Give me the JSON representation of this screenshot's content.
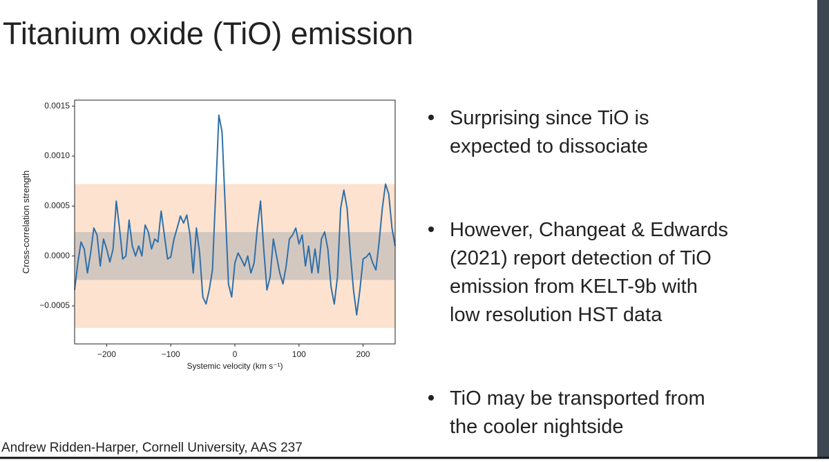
{
  "slide": {
    "title": "Titanium oxide (TiO) emission",
    "bullets": [
      [
        "Surprising since TiO is",
        "expected to dissociate"
      ],
      [
        "However, Changeat & Edwards",
        "(2021) report detection of TiO",
        "emission from KELT-9b with",
        "low resolution HST data"
      ],
      [
        "TiO may be transported from",
        "the cooler nightside"
      ]
    ],
    "footer": "Andrew Ridden-Harper, Cornell University, AAS 237"
  },
  "chart_data": {
    "type": "line",
    "xlabel": "Systemic velocity (km s⁻¹)",
    "ylabel": "Cross-correlation strength",
    "xlim": [
      -250,
      250
    ],
    "ylim": [
      -0.00088,
      0.00156
    ],
    "xticks": [
      {
        "value": -200,
        "label": "−200"
      },
      {
        "value": -100,
        "label": "−100"
      },
      0,
      100,
      200
    ],
    "yticks": [
      {
        "value": -0.0005,
        "label": "−0.0005"
      },
      {
        "value": 0,
        "label": "0.0000"
      },
      0.0005,
      {
        "value": 0.001,
        "label": "0.0010"
      },
      0.0015
    ],
    "bands": [
      {
        "color": "#fde3cf",
        "lower": -0.00072,
        "upper": 0.00072
      },
      {
        "color": "#cbc3bd",
        "lower": -0.00024,
        "upper": 0.00024
      }
    ],
    "x": [
      -250,
      -245,
      -240,
      -235,
      -230,
      -225,
      -220,
      -215,
      -210,
      -205,
      -200,
      -195,
      -190,
      -185,
      -180,
      -175,
      -170,
      -165,
      -160,
      -155,
      -150,
      -145,
      -140,
      -135,
      -130,
      -125,
      -120,
      -115,
      -110,
      -105,
      -100,
      -95,
      -90,
      -85,
      -80,
      -75,
      -70,
      -65,
      -60,
      -55,
      -50,
      -45,
      -40,
      -35,
      -30,
      -25,
      -20,
      -15,
      -10,
      -5,
      0,
      5,
      10,
      15,
      20,
      25,
      30,
      35,
      40,
      45,
      50,
      55,
      60,
      65,
      70,
      75,
      80,
      85,
      90,
      95,
      100,
      105,
      110,
      115,
      120,
      125,
      130,
      135,
      140,
      145,
      150,
      155,
      160,
      165,
      170,
      175,
      180,
      185,
      190,
      195,
      200,
      205,
      210,
      215,
      220,
      225,
      230,
      235,
      240,
      245,
      250
    ],
    "series": [
      {
        "color": "#2f6fa8",
        "values": [
          -0.00034,
          -7e-05,
          0.00014,
          7e-05,
          -0.00017,
          3e-05,
          0.00028,
          0.00021,
          -0.0001,
          0.00017,
          7e-05,
          -6e-05,
          7e-05,
          0.00055,
          0.00028,
          -3e-05,
          0,
          0.00036,
          0.0001,
          0,
          0.0001,
          0,
          0.00031,
          0.00024,
          7e-05,
          0.00017,
          0.00014,
          0.00045,
          0.00021,
          -3e-05,
          -1e-05,
          0.00017,
          0.00028,
          0.0004,
          0.00033,
          0.00041,
          0.00021,
          -0.00017,
          0.00028,
          3e-05,
          -0.00041,
          -0.00048,
          -0.00034,
          -0.00014,
          0.00062,
          0.00141,
          0.00124,
          0.00048,
          -0.00028,
          -0.00041,
          -7e-05,
          3e-05,
          -3e-05,
          -0.0001,
          0,
          -0.00017,
          -7e-05,
          0.00028,
          0.00055,
          7e-05,
          -0.00034,
          -0.00021,
          0.00017,
          0,
          -0.00017,
          -0.00028,
          -0.0001,
          0.00017,
          0.00021,
          0.00028,
          0.00012,
          0.00021,
          -0.0001,
          0.0001,
          -0.00017,
          7e-05,
          -0.00017,
          0.00017,
          0.00024,
          7e-05,
          -0.00031,
          -0.00048,
          -0.00021,
          0.00048,
          0.00066,
          0.00048,
          3e-05,
          -0.00034,
          -0.00059,
          -0.00034,
          -3e-05,
          -1e-05,
          3e-05,
          -7e-05,
          -0.00014,
          0.00014,
          0.00048,
          0.00072,
          0.00062,
          0.00028,
          0.0001
        ]
      }
    ]
  }
}
